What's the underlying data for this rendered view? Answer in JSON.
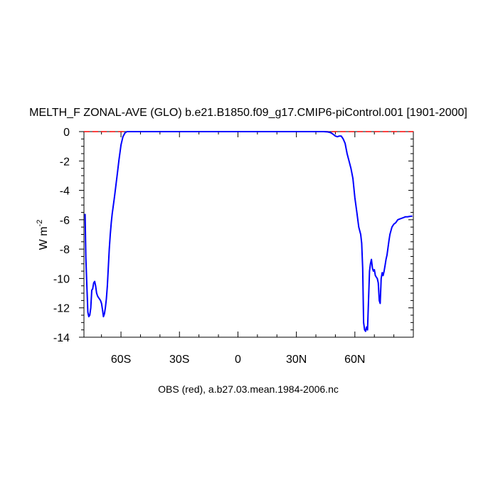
{
  "chart_data": {
    "type": "line",
    "title": "MELTH_F ZONAL-AVE (GLO) b.e21.B1850.f09_g17.CMIP6-piControl.001 [1901-2000]",
    "ylabel_main": "W m",
    "ylabel_sup": "-2",
    "footer": "OBS (red), a.b27.03.mean.1984-2006.nc",
    "xlim": [
      -79,
      90
    ],
    "ylim": [
      -14,
      0
    ],
    "x_ticks": [
      {
        "value": -60,
        "label": "60S"
      },
      {
        "value": -30,
        "label": "30S"
      },
      {
        "value": 0,
        "label": "0"
      },
      {
        "value": 30,
        "label": "30N"
      },
      {
        "value": 60,
        "label": "60N"
      }
    ],
    "y_ticks": [
      {
        "value": 0,
        "label": "0"
      },
      {
        "value": -2,
        "label": "-2"
      },
      {
        "value": -4,
        "label": "-4"
      },
      {
        "value": -6,
        "label": "-6"
      },
      {
        "value": -8,
        "label": "-8"
      },
      {
        "value": -10,
        "label": "-10"
      },
      {
        "value": -12,
        "label": "-12"
      },
      {
        "value": -14,
        "label": "-14"
      }
    ],
    "series": [
      {
        "color": "#0000ff",
        "style": "solid",
        "x": [
          -78.4,
          -78.0,
          -77.5,
          -77.0,
          -76.5,
          -76.0,
          -75.5,
          -75.0,
          -74.5,
          -74.0,
          -73.5,
          -73.0,
          -72.5,
          -72.0,
          -71.5,
          -71.0,
          -70.5,
          -70.0,
          -69.5,
          -69.0,
          -68.5,
          -68.0,
          -67.5,
          -67.0,
          -66.5,
          -66.0,
          -65.5,
          -65.0,
          -64.5,
          -64.0,
          -63.5,
          -63.0,
          -62.0,
          -61.0,
          -60.0,
          -59.0,
          -58.0,
          -57.0,
          -56.0,
          -55.0,
          -54.0,
          -53.0,
          -52.0,
          -51.0,
          -50.0,
          -40.0,
          -20.0,
          0.0,
          20.0,
          40.0,
          44.0,
          46.0,
          47.0,
          48.0,
          49.0,
          50.0,
          51.0,
          52.0,
          53.0,
          54.0,
          55.0,
          56.0,
          57.0,
          58.0,
          59.0,
          60.0,
          61.0,
          62.0,
          63.0,
          63.5,
          64.0,
          64.5,
          65.0,
          65.5,
          66.0,
          66.5,
          67.0,
          67.5,
          68.0,
          68.5,
          69.0,
          69.5,
          70.0,
          70.5,
          71.0,
          71.5,
          72.0,
          72.5,
          73.0,
          73.5,
          74.0,
          74.5,
          75.0,
          75.5,
          76.0,
          76.5,
          77.0,
          77.5,
          78.0,
          79.0,
          80.0,
          81.0,
          82.0,
          83.0,
          84.0,
          85.0,
          86.0,
          87.0,
          88.0,
          89.0,
          89.5
        ],
        "y": [
          -5.6,
          -8.6,
          -10.5,
          -12.3,
          -12.6,
          -12.5,
          -12.0,
          -10.8,
          -10.7,
          -10.3,
          -10.2,
          -10.5,
          -11.0,
          -11.2,
          -11.3,
          -11.4,
          -11.5,
          -11.7,
          -12.1,
          -12.6,
          -12.4,
          -12.0,
          -11.4,
          -10.5,
          -9.3,
          -8.0,
          -7.0,
          -6.2,
          -5.6,
          -5.1,
          -4.6,
          -4.1,
          -3.0,
          -1.9,
          -0.9,
          -0.35,
          -0.1,
          0.0,
          0.0,
          0.0,
          0.0,
          0.0,
          0.0,
          0.0,
          0.0,
          0.0,
          0.0,
          0.0,
          0.0,
          0.0,
          0.0,
          -0.02,
          -0.05,
          -0.1,
          -0.2,
          -0.3,
          -0.35,
          -0.3,
          -0.3,
          -0.5,
          -0.8,
          -1.5,
          -2.0,
          -2.5,
          -3.2,
          -4.5,
          -5.5,
          -6.5,
          -7.0,
          -7.6,
          -9.3,
          -13.0,
          -13.5,
          -13.6,
          -13.3,
          -13.5,
          -11.5,
          -9.5,
          -9.0,
          -8.7,
          -9.3,
          -9.5,
          -9.4,
          -9.8,
          -9.9,
          -10.0,
          -10.3,
          -11.5,
          -11.7,
          -10.0,
          -9.6,
          -9.8,
          -9.5,
          -9.1,
          -8.7,
          -8.4,
          -7.9,
          -7.4,
          -7.0,
          -6.5,
          -6.3,
          -6.2,
          -6.0,
          -5.95,
          -5.9,
          -5.85,
          -5.8,
          -5.8,
          -5.78,
          -5.76,
          -5.75
        ]
      },
      {
        "color": "#ff0000",
        "style": "dashed",
        "x": [
          -79,
          90
        ],
        "y": [
          0,
          0
        ]
      }
    ]
  }
}
